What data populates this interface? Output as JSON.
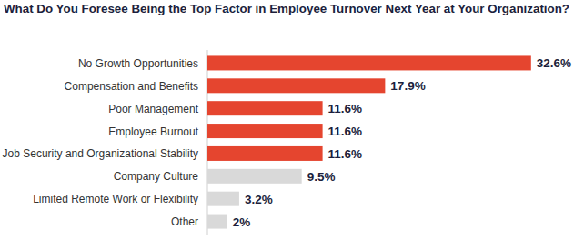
{
  "chart_data": {
    "type": "bar",
    "orientation": "horizontal",
    "title": "What Do You Foresee Being the Top Factor in Employee Turnover Next Year at Your Organization?",
    "categories": [
      "No Growth Opportunities",
      "Compensation and Benefits",
      "Poor Management",
      "Employee Burnout",
      "Job Security and Organizational Stability",
      "Company Culture",
      "Limited Remote Work or Flexibility",
      "Other"
    ],
    "values": [
      32.6,
      17.9,
      11.6,
      11.6,
      11.6,
      9.5,
      3.2,
      2
    ],
    "value_labels": [
      "32.6%",
      "17.9%",
      "11.6%",
      "11.6%",
      "11.6%",
      "9.5%",
      "3.2%",
      "2%"
    ],
    "colors": [
      "#e5452f",
      "#e5452f",
      "#e5452f",
      "#e5452f",
      "#e5452f",
      "#d9d9d9",
      "#d9d9d9",
      "#d9d9d9"
    ],
    "xlim": [
      0,
      35
    ],
    "data_labels": true,
    "tick_labels": "y",
    "grid": false
  }
}
